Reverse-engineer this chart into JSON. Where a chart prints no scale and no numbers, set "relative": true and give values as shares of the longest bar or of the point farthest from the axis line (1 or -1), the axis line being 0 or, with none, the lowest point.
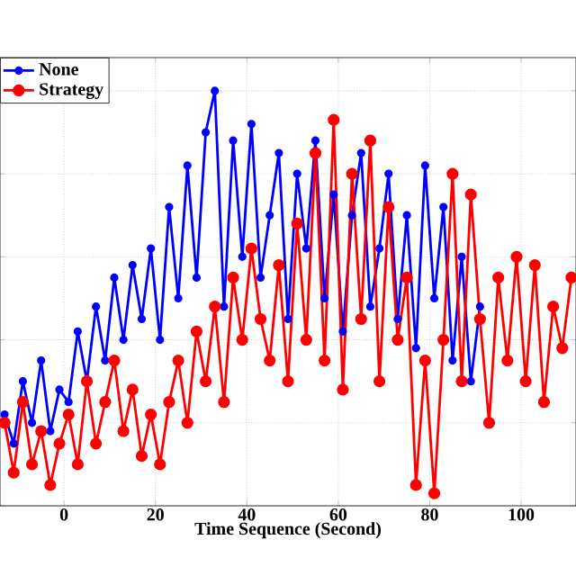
{
  "chart_data": {
    "type": "line",
    "xlabel": "Time Sequence (Second)",
    "relative": true,
    "xlim": [
      -14,
      112
    ],
    "xticks": [
      0,
      20,
      40,
      60,
      80,
      100
    ],
    "grid": true,
    "legend": "top left",
    "marker": "circle",
    "line_style": "solid",
    "tick_labels": "x",
    "series": [
      {
        "name": "None",
        "color": "#0000ff",
        "x": [
          -13,
          -11,
          -9,
          -7,
          -5,
          -3,
          -1,
          1,
          3,
          5,
          7,
          9,
          11,
          13,
          15,
          17,
          19,
          21,
          23,
          25,
          27,
          29,
          31,
          33,
          35,
          37,
          39,
          41,
          43,
          45,
          47,
          49,
          51,
          53,
          55,
          57,
          59,
          61,
          63,
          65,
          67,
          69,
          71,
          73,
          75,
          77,
          79,
          81,
          83,
          85,
          87,
          89,
          91
        ],
        "values": [
          0.22,
          0.15,
          0.3,
          0.2,
          0.35,
          0.18,
          0.28,
          0.25,
          0.42,
          0.3,
          0.48,
          0.35,
          0.55,
          0.4,
          0.58,
          0.45,
          0.62,
          0.4,
          0.72,
          0.5,
          0.82,
          0.55,
          0.9,
          1.0,
          0.48,
          0.88,
          0.6,
          0.92,
          0.55,
          0.7,
          0.85,
          0.45,
          0.8,
          0.62,
          0.88,
          0.5,
          0.75,
          0.42,
          0.7,
          0.85,
          0.48,
          0.62,
          0.8,
          0.45,
          0.7,
          0.38,
          0.82,
          0.5,
          0.72,
          0.35,
          0.6,
          0.3,
          0.48
        ]
      },
      {
        "name": "Strategy",
        "color": "#ff0000",
        "x": [
          -13,
          -11,
          -9,
          -7,
          -5,
          -3,
          -1,
          1,
          3,
          5,
          7,
          9,
          11,
          13,
          15,
          17,
          19,
          21,
          23,
          25,
          27,
          29,
          31,
          33,
          35,
          37,
          39,
          41,
          43,
          45,
          47,
          49,
          51,
          53,
          55,
          57,
          59,
          61,
          63,
          65,
          67,
          69,
          71,
          73,
          75,
          77,
          79,
          81,
          83,
          85,
          87,
          89,
          91,
          93,
          95,
          97,
          99,
          101,
          103,
          105,
          107,
          109,
          111
        ],
        "values": [
          0.2,
          0.08,
          0.25,
          0.1,
          0.18,
          0.05,
          0.15,
          0.22,
          0.1,
          0.3,
          0.15,
          0.25,
          0.35,
          0.18,
          0.28,
          0.12,
          0.22,
          0.1,
          0.25,
          0.35,
          0.2,
          0.42,
          0.3,
          0.48,
          0.25,
          0.55,
          0.4,
          0.62,
          0.45,
          0.35,
          0.58,
          0.3,
          0.68,
          0.4,
          0.85,
          0.35,
          0.93,
          0.28,
          0.8,
          0.45,
          0.88,
          0.3,
          0.72,
          0.4,
          0.55,
          0.05,
          0.35,
          0.03,
          0.4,
          0.8,
          0.3,
          0.75,
          0.45,
          0.2,
          0.55,
          0.35,
          0.6,
          0.3,
          0.58,
          0.25,
          0.48,
          0.38,
          0.55
        ]
      }
    ]
  }
}
